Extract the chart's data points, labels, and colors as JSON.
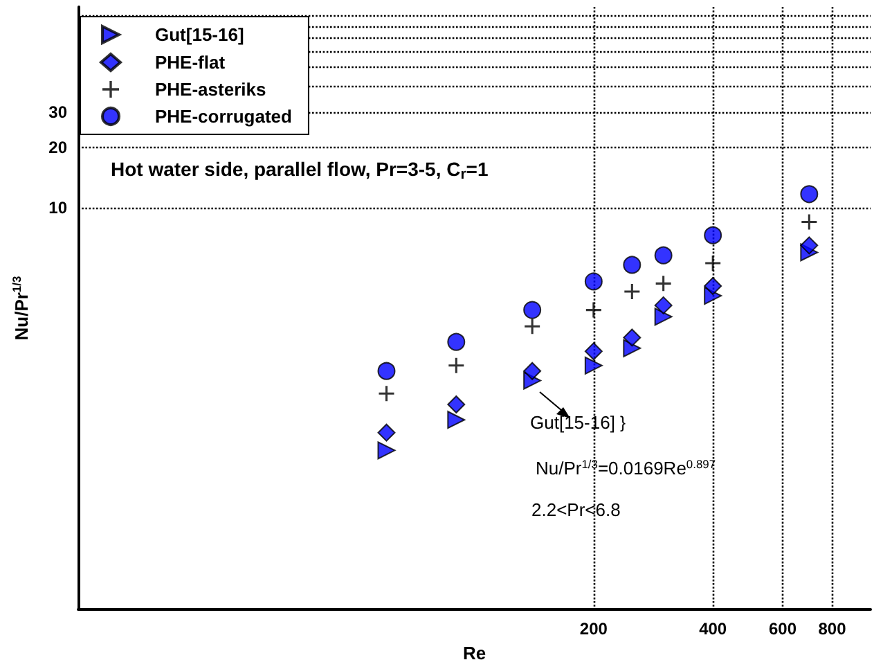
{
  "chart_data": {
    "type": "scatter",
    "xlabel": "Re",
    "ylabel": "Nu/Pr$^{1/3}$",
    "x": [
      60,
      90,
      140,
      200,
      250,
      300,
      400,
      700
    ],
    "series": [
      {
        "name": "Gut[15-16]",
        "color": "#0000ff",
        "marker": "triangle",
        "values": [
          0.62,
          0.88,
          1.38,
          1.64,
          2.0,
          2.87,
          3.65,
          6.0
        ]
      },
      {
        "name": "PHE-flat",
        "color": "#0000ff",
        "marker": "diamond",
        "values": [
          0.76,
          1.05,
          1.54,
          1.93,
          2.26,
          3.27,
          4.08,
          6.5
        ]
      },
      {
        "name": "PHE-asteriks",
        "color": "#000000",
        "marker": "cross",
        "values": [
          1.19,
          1.64,
          2.57,
          3.1,
          3.83,
          4.2,
          5.3,
          8.5
        ]
      },
      {
        "name": "PHE-corrugated",
        "color": "#0000ff",
        "marker": "circle",
        "values": [
          1.54,
          2.15,
          3.1,
          4.3,
          5.2,
          5.8,
          7.3,
          11.7
        ]
      }
    ],
    "log": "xy",
    "xlim": [
      10,
      1000
    ],
    "ylim": [
      0.1,
      100
    ],
    "xticks": [
      200,
      400,
      600,
      800
    ],
    "yticks": [
      10,
      20,
      30,
      {
        "value": 40,
        "label": null
      },
      {
        "value": 50,
        "label": null
      },
      {
        "value": 60,
        "label": null
      },
      {
        "value": 70,
        "label": null
      },
      {
        "value": 80,
        "label": null
      },
      {
        "value": 90,
        "label": null
      }
    ],
    "grid": true,
    "legend": "top left",
    "annotations": [
      "Hot water side, parallel flow, Pr=3-5, C$_{r}$=1",
      "Gut[15-16] }",
      "Nu/Pr$^{1/3}$=0.0169Re$^{0.897}$",
      "2.2<Pr<6.8"
    ]
  }
}
